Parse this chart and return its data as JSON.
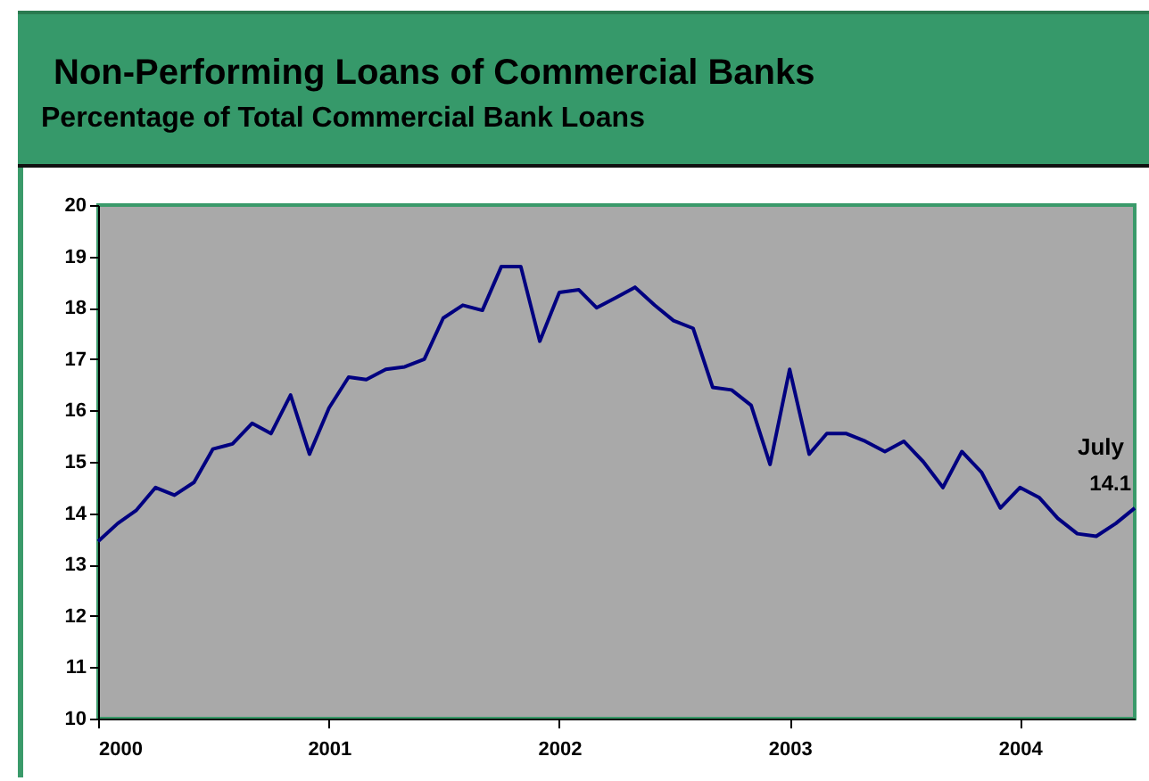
{
  "chart_data": {
    "type": "line",
    "title": "Non-Performing Loans of Commercial Banks",
    "subtitle": "Percentage of Total Commercial Bank Loans",
    "x": [
      "2000-01",
      "2000-02",
      "2000-03",
      "2000-04",
      "2000-05",
      "2000-06",
      "2000-07",
      "2000-08",
      "2000-09",
      "2000-10",
      "2000-11",
      "2000-12",
      "2001-01",
      "2001-02",
      "2001-03",
      "2001-04",
      "2001-05",
      "2001-06",
      "2001-07",
      "2001-08",
      "2001-09",
      "2001-10",
      "2001-11",
      "2001-12",
      "2002-01",
      "2002-02",
      "2002-03",
      "2002-04",
      "2002-05",
      "2002-06",
      "2002-07",
      "2002-08",
      "2002-09",
      "2002-10",
      "2002-11",
      "2002-12",
      "2003-01",
      "2003-02",
      "2003-03",
      "2003-04",
      "2003-05",
      "2003-06",
      "2003-07",
      "2003-08",
      "2003-09",
      "2003-10",
      "2003-11",
      "2003-12",
      "2004-01",
      "2004-02",
      "2004-03",
      "2004-04",
      "2004-05",
      "2004-06",
      "2004-07"
    ],
    "series": [
      {
        "color": "#000080",
        "values": [
          13.45,
          13.8,
          14.05,
          14.5,
          14.35,
          14.6,
          15.25,
          15.35,
          15.75,
          15.55,
          16.3,
          15.15,
          16.05,
          16.65,
          16.6,
          16.8,
          16.85,
          17.0,
          17.8,
          18.05,
          17.95,
          18.8,
          18.8,
          17.35,
          18.3,
          18.35,
          18.0,
          18.2,
          18.4,
          18.05,
          17.75,
          17.6,
          16.45,
          16.4,
          16.1,
          14.95,
          16.8,
          15.15,
          15.55,
          15.55,
          15.4,
          15.2,
          15.4,
          15.0,
          14.5,
          15.2,
          14.8,
          14.1,
          14.5,
          14.3,
          13.9,
          13.6,
          13.55,
          13.8,
          14.1
        ],
        "value_labels": [
          null,
          null,
          null,
          null,
          null,
          null,
          null,
          null,
          null,
          null,
          null,
          null,
          null,
          null,
          null,
          null,
          null,
          null,
          null,
          null,
          null,
          null,
          null,
          null,
          null,
          null,
          null,
          null,
          null,
          null,
          null,
          null,
          null,
          null,
          null,
          null,
          null,
          null,
          null,
          null,
          null,
          null,
          null,
          null,
          null,
          null,
          null,
          null,
          null,
          null,
          null,
          null,
          null,
          null,
          "14.1"
        ]
      }
    ],
    "xlim": [
      "2000-01",
      "2004-07"
    ],
    "xticks": [
      {
        "value": "2000-01",
        "label": "2000"
      },
      {
        "value": "2001-01",
        "label": "2001"
      },
      {
        "value": "2002-01",
        "label": "2002"
      },
      {
        "value": "2003-01",
        "label": "2003"
      },
      {
        "value": "2004-01",
        "label": "2004"
      }
    ],
    "ylim": [
      10,
      20
    ],
    "yticks": [
      10,
      11,
      12,
      13,
      14,
      15,
      16,
      17,
      18,
      19,
      20
    ],
    "annotations": [
      {
        "text": "July",
        "x": "2004-07",
        "y": 14.1
      }
    ],
    "grid": false,
    "marker": "none",
    "line_style": "solid"
  }
}
